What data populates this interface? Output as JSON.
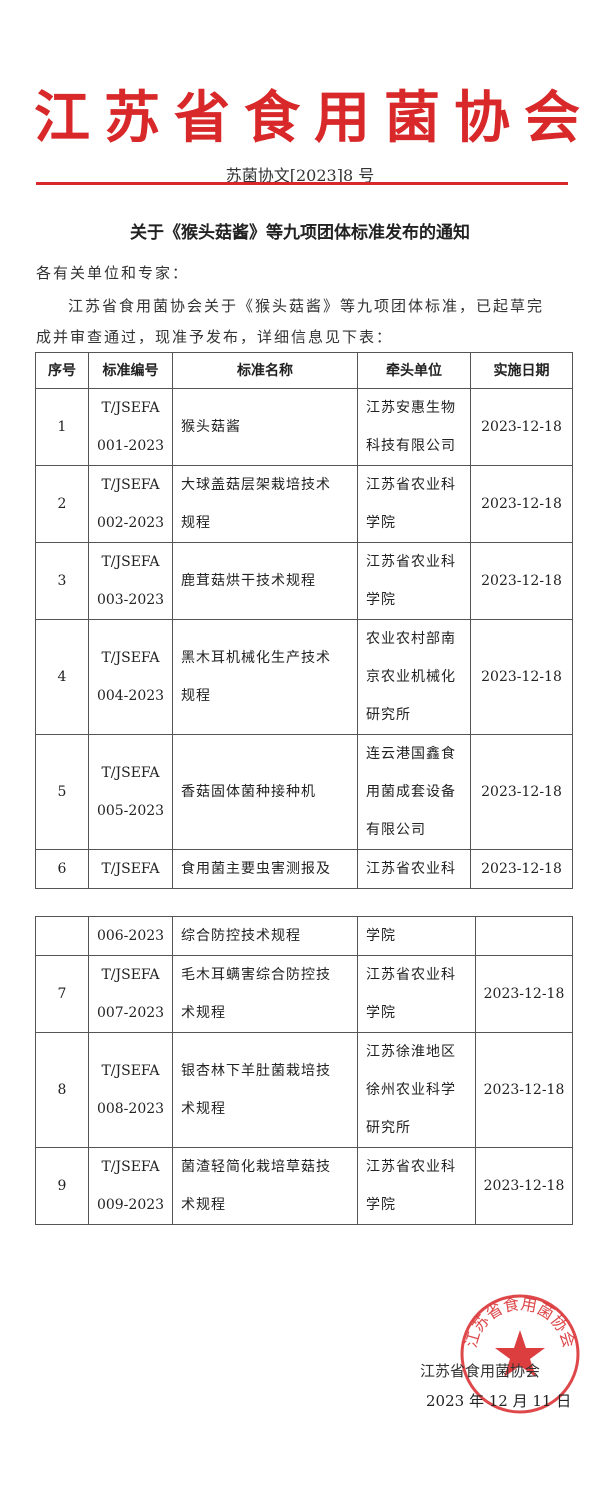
{
  "header": {
    "organization": "江苏省食用菌协会",
    "doc_number": "苏菌协文[2023]8 号",
    "accent_color": "#d8282a"
  },
  "title": "关于《猴头菇酱》等九项团体标准发布的通知",
  "salutation": "各有关单位和专家：",
  "body_line1": "江苏省食用菌协会关于《猴头菇酱》等九项团体标准，已起草完",
  "body_line2": "成并审查通过，现准予发布，详细信息见下表：",
  "table": {
    "headers": [
      "序号",
      "标准编号",
      "标准名称",
      "牵头单位",
      "实施日期"
    ],
    "rows": [
      {
        "no": "1",
        "code1": "T/JSEFA",
        "code2": "001-2023",
        "name1": "猴头菇酱",
        "name2": "",
        "unit1": "江苏安惠生物",
        "unit2": "科技有限公司",
        "unit3": "",
        "date": "2023-12-18"
      },
      {
        "no": "2",
        "code1": "T/JSEFA",
        "code2": "002-2023",
        "name1": "大球盖菇层架栽培技术",
        "name2": "规程",
        "unit1": "江苏省农业科",
        "unit2": "学院",
        "unit3": "",
        "date": "2023-12-18"
      },
      {
        "no": "3",
        "code1": "T/JSEFA",
        "code2": "003-2023",
        "name1": "鹿茸菇烘干技术规程",
        "name2": "",
        "unit1": "江苏省农业科",
        "unit2": "学院",
        "unit3": "",
        "date": "2023-12-18"
      },
      {
        "no": "4",
        "code1": "T/JSEFA",
        "code2": "004-2023",
        "name1": "黑木耳机械化生产技术",
        "name2": "规程",
        "unit1": "农业农村部南",
        "unit2": "京农业机械化",
        "unit3": "研究所",
        "date": "2023-12-18"
      },
      {
        "no": "5",
        "code1": "T/JSEFA",
        "code2": "005-2023",
        "name1": "香菇固体菌种接种机",
        "name2": "",
        "unit1": "连云港国鑫食",
        "unit2": "用菌成套设备",
        "unit3": "有限公司",
        "date": "2023-12-18"
      },
      {
        "no": "6",
        "code1": "T/JSEFA",
        "code2": "006-2023",
        "name1": "食用菌主要虫害测报及",
        "name2": "综合防控技术规程",
        "unit1": "江苏省农业科",
        "unit2": "学院",
        "unit3": "",
        "date": "2023-12-18"
      },
      {
        "no": "7",
        "code1": "T/JSEFA",
        "code2": "007-2023",
        "name1": "毛木耳螨害综合防控技",
        "name2": "术规程",
        "unit1": "江苏省农业科",
        "unit2": "学院",
        "unit3": "",
        "date": "2023-12-18"
      },
      {
        "no": "8",
        "code1": "T/JSEFA",
        "code2": "008-2023",
        "name1": "银杏林下羊肚菌栽培技",
        "name2": "术规程",
        "unit1": "江苏徐淮地区",
        "unit2": "徐州农业科学",
        "unit3": "研究所",
        "date": "2023-12-18"
      },
      {
        "no": "9",
        "code1": "T/JSEFA",
        "code2": "009-2023",
        "name1": "菌渣轻简化栽培草菇技",
        "name2": "术规程",
        "unit1": "江苏省农业科",
        "unit2": "学院",
        "unit3": "",
        "date": "2023-12-18"
      }
    ]
  },
  "signature": {
    "organization": "江苏省食用菌协会",
    "date": "2023 年 12 月 11 日",
    "seal_text": "江苏省食用菌协会"
  }
}
